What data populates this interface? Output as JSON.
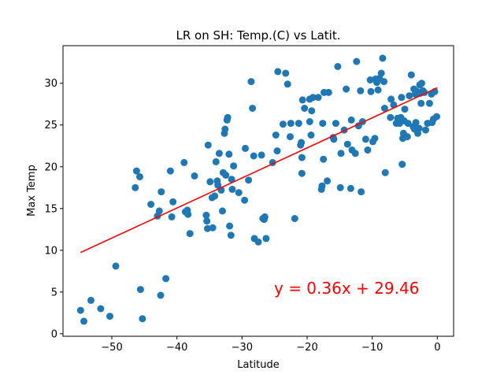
{
  "chart_data": {
    "type": "scatter",
    "title": "LR on SH: Temp.(C) vs Latit.",
    "xlabel": "Latitude",
    "ylabel": "Max Temp",
    "xlim": [
      -57.5,
      2.5
    ],
    "ylim": [
      -0.3,
      34.5
    ],
    "xticks": [
      -50,
      -40,
      -30,
      -20,
      -10,
      0
    ],
    "yticks": [
      0,
      5,
      10,
      15,
      20,
      25,
      30
    ],
    "xtick_labels": [
      "−50",
      "−40",
      "−30",
      "−20",
      "−10",
      "0"
    ],
    "ytick_labels": [
      "0",
      "5",
      "10",
      "15",
      "20",
      "25",
      "30"
    ],
    "grid": false,
    "point_color": "#1f77b4",
    "line_color": "#ff0000",
    "regression": {
      "slope": 0.36,
      "intercept": 29.46,
      "x_range": [
        -54.8,
        0
      ]
    },
    "equation_label": "y = 0.36x + 29.46",
    "points": [
      [
        -54.8,
        2.8
      ],
      [
        -54.3,
        1.5
      ],
      [
        -53.2,
        4.0
      ],
      [
        -51.7,
        3.0
      ],
      [
        -50.3,
        2.1
      ],
      [
        -49.4,
        8.1
      ],
      [
        -46.4,
        17.5
      ],
      [
        -46.2,
        19.5
      ],
      [
        -45.7,
        18.8
      ],
      [
        -45.6,
        5.3
      ],
      [
        -45.3,
        1.8
      ],
      [
        -44.0,
        15.5
      ],
      [
        -43.0,
        14.1
      ],
      [
        -42.7,
        14.7
      ],
      [
        -42.5,
        4.6
      ],
      [
        -42.4,
        17.0
      ],
      [
        -41.7,
        6.6
      ],
      [
        -41.0,
        19.5
      ],
      [
        -40.8,
        14.0
      ],
      [
        -40.6,
        15.8
      ],
      [
        -38.9,
        20.5
      ],
      [
        -38.7,
        14.6
      ],
      [
        -38.4,
        14.8
      ],
      [
        -38.3,
        14.3
      ],
      [
        -38.0,
        12.0
      ],
      [
        -37.3,
        18.9
      ],
      [
        -35.5,
        14.2
      ],
      [
        -35.4,
        13.5
      ],
      [
        -35.3,
        12.6
      ],
      [
        -35.2,
        22.6
      ],
      [
        -34.9,
        18.2
      ],
      [
        -34.6,
        16.3
      ],
      [
        -34.5,
        12.7
      ],
      [
        -34.2,
        16.5
      ],
      [
        -34.0,
        20.6
      ],
      [
        -33.8,
        18.3
      ],
      [
        -33.7,
        17.8
      ],
      [
        -33.5,
        21.6
      ],
      [
        -33.2,
        17.2
      ],
      [
        -33.0,
        14.7
      ],
      [
        -32.9,
        19.3
      ],
      [
        -32.7,
        24.0
      ],
      [
        -32.6,
        24.5
      ],
      [
        -32.5,
        19.0
      ],
      [
        -32.3,
        25.6
      ],
      [
        -32.2,
        25.9
      ],
      [
        -32.0,
        21.5
      ],
      [
        -31.9,
        12.9
      ],
      [
        -31.7,
        11.8
      ],
      [
        -31.6,
        18.5
      ],
      [
        -31.5,
        17.3
      ],
      [
        -31.3,
        20.1
      ],
      [
        -30.5,
        16.9
      ],
      [
        -29.6,
        16.0
      ],
      [
        -29.5,
        22.2
      ],
      [
        -29.0,
        18.4
      ],
      [
        -28.6,
        30.2
      ],
      [
        -28.4,
        27.0
      ],
      [
        -28.2,
        21.3
      ],
      [
        -28.1,
        11.4
      ],
      [
        -27.5,
        11.0
      ],
      [
        -27.0,
        21.4
      ],
      [
        -26.8,
        13.8
      ],
      [
        -26.6,
        13.7
      ],
      [
        -26.5,
        14.0
      ],
      [
        -26.3,
        11.4
      ],
      [
        -25.3,
        20.5
      ],
      [
        -24.8,
        23.8
      ],
      [
        -24.6,
        21.9
      ],
      [
        -24.5,
        31.4
      ],
      [
        -23.7,
        25.1
      ],
      [
        -23.3,
        31.2
      ],
      [
        -23.0,
        29.9
      ],
      [
        -22.6,
        23.6
      ],
      [
        -22.5,
        25.2
      ],
      [
        -21.9,
        13.8
      ],
      [
        -21.3,
        25.2
      ],
      [
        -21.0,
        22.6
      ],
      [
        -20.9,
        22.9
      ],
      [
        -20.8,
        21.1
      ],
      [
        -20.8,
        19.2
      ],
      [
        -20.7,
        28.0
      ],
      [
        -20.4,
        27.0
      ],
      [
        -19.6,
        25.4
      ],
      [
        -19.6,
        28.1
      ],
      [
        -19.4,
        23.8
      ],
      [
        -19.3,
        26.7
      ],
      [
        -19.1,
        28.3
      ],
      [
        -18.3,
        28.3
      ],
      [
        -17.8,
        17.3
      ],
      [
        -17.7,
        17.7
      ],
      [
        -17.6,
        25.2
      ],
      [
        -17.5,
        20.9
      ],
      [
        -17.4,
        28.9
      ],
      [
        -16.9,
        18.3
      ],
      [
        -16.7,
        28.9
      ],
      [
        -16.0,
        23.5
      ],
      [
        -15.9,
        23.3
      ],
      [
        -15.6,
        25.2
      ],
      [
        -15.3,
        32.0
      ],
      [
        -14.9,
        17.5
      ],
      [
        -14.8,
        21.6
      ],
      [
        -14.3,
        24.4
      ],
      [
        -14.0,
        29.3
      ],
      [
        -13.8,
        22.7
      ],
      [
        -13.3,
        17.4
      ],
      [
        -13.2,
        25.6
      ],
      [
        -13.1,
        22.0
      ],
      [
        -12.6,
        21.6
      ],
      [
        -12.4,
        32.6
      ],
      [
        -12.1,
        24.9
      ],
      [
        -11.8,
        29.1
      ],
      [
        -11.7,
        17.0
      ],
      [
        -11.5,
        25.4
      ],
      [
        -11.0,
        23.3
      ],
      [
        -10.7,
        22.0
      ],
      [
        -10.3,
        30.4
      ],
      [
        -10.2,
        29.0
      ],
      [
        -9.9,
        23.0
      ],
      [
        -9.6,
        23.4
      ],
      [
        -9.5,
        30.5
      ],
      [
        -9.3,
        30.1
      ],
      [
        -9.1,
        29.2
      ],
      [
        -8.9,
        30.6
      ],
      [
        -8.6,
        31.2
      ],
      [
        -8.4,
        33.0
      ],
      [
        -8.2,
        30.2
      ],
      [
        -8.1,
        27.0
      ],
      [
        -8.0,
        19.3
      ],
      [
        -7.2,
        25.9
      ],
      [
        -7.1,
        28.1
      ],
      [
        -6.7,
        27.4
      ],
      [
        -6.3,
        25.2
      ],
      [
        -6.1,
        25.8
      ],
      [
        -5.8,
        25.2
      ],
      [
        -5.6,
        25.9
      ],
      [
        -5.5,
        28.3
      ],
      [
        -5.4,
        20.3
      ],
      [
        -5.3,
        23.4
      ],
      [
        -5.2,
        24.0
      ],
      [
        -5.1,
        25.5
      ],
      [
        -5.0,
        26.9
      ],
      [
        -4.6,
        23.6
      ],
      [
        -4.5,
        25.2
      ],
      [
        -4.3,
        28.5
      ],
      [
        -4.0,
        31.0
      ],
      [
        -3.7,
        24.8
      ],
      [
        -3.6,
        29.3
      ],
      [
        -3.5,
        24.5
      ],
      [
        -3.4,
        28.7
      ],
      [
        -3.3,
        25.3
      ],
      [
        -3.1,
        29.0
      ],
      [
        -3.0,
        24.0
      ],
      [
        -2.8,
        24.6
      ],
      [
        -2.7,
        29.8
      ],
      [
        -2.6,
        28.8
      ],
      [
        -2.5,
        27.6
      ],
      [
        -2.4,
        30.0
      ],
      [
        -2.2,
        29.1
      ],
      [
        -2.0,
        28.9
      ],
      [
        -1.8,
        24.4
      ],
      [
        -1.5,
        25.2
      ],
      [
        -1.2,
        27.6
      ],
      [
        -0.9,
        28.7
      ],
      [
        -0.8,
        25.3
      ],
      [
        -0.6,
        25.7
      ],
      [
        -0.4,
        29.0
      ],
      [
        -0.1,
        26.0
      ]
    ]
  }
}
